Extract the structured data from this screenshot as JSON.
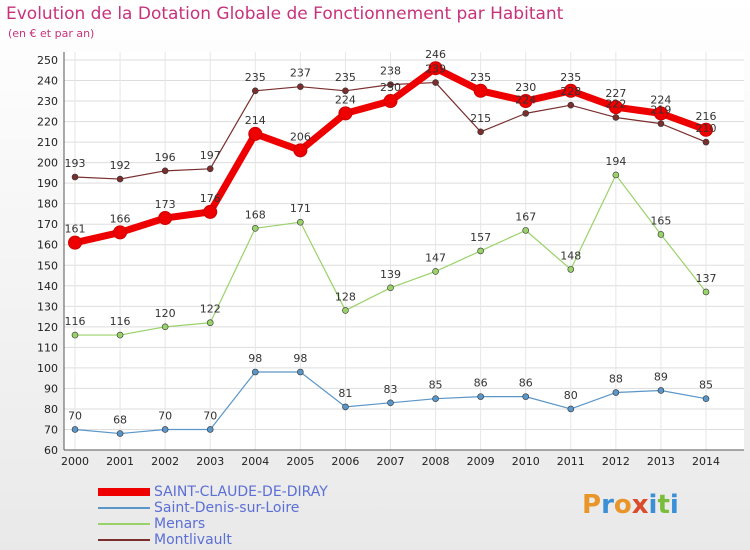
{
  "header": {
    "title": "Evolution de la Dotation Globale de Fonctionnement par Habitant",
    "subtitle": "(en € et par an)"
  },
  "logo": {
    "text": "Proxiti",
    "colors": [
      "#e8962a",
      "#3a8fd6",
      "#e8962a",
      "#d94b2b",
      "#3a8fd6",
      "#7abd3a",
      "#3a8fd6"
    ]
  },
  "chart_data": {
    "type": "line",
    "title": "Evolution de la Dotation Globale de Fonctionnement par Habitant",
    "subtitle": "(en € et par an)",
    "x": [
      "2000",
      "2001",
      "2002",
      "2003",
      "2004",
      "2005",
      "2006",
      "2007",
      "2008",
      "2009",
      "2010",
      "2011",
      "2012",
      "2013",
      "2014"
    ],
    "ylim": [
      60,
      250
    ],
    "ytick_step": 10,
    "grid": true,
    "legend_position": "bottom-left",
    "series": [
      {
        "name": "SAINT-CLAUDE-DE-DIRAY",
        "color": "#ee0000",
        "emphasis": true,
        "values": [
          161,
          166,
          173,
          176,
          214,
          206,
          224,
          230,
          246,
          235,
          230,
          235,
          227,
          224,
          216
        ]
      },
      {
        "name": "Saint-Denis-sur-Loire",
        "color": "#5a96c8",
        "values": [
          70,
          68,
          70,
          70,
          98,
          98,
          81,
          83,
          85,
          86,
          86,
          80,
          88,
          89,
          85
        ]
      },
      {
        "name": "Menars",
        "color": "#9ad26a",
        "values": [
          116,
          116,
          120,
          122,
          168,
          171,
          128,
          139,
          147,
          157,
          167,
          148,
          194,
          165,
          137
        ]
      },
      {
        "name": "Montlivault",
        "color": "#7a2e2e",
        "values": [
          193,
          192,
          196,
          197,
          235,
          237,
          235,
          238,
          239,
          215,
          224,
          228,
          222,
          219,
          210
        ]
      }
    ]
  }
}
